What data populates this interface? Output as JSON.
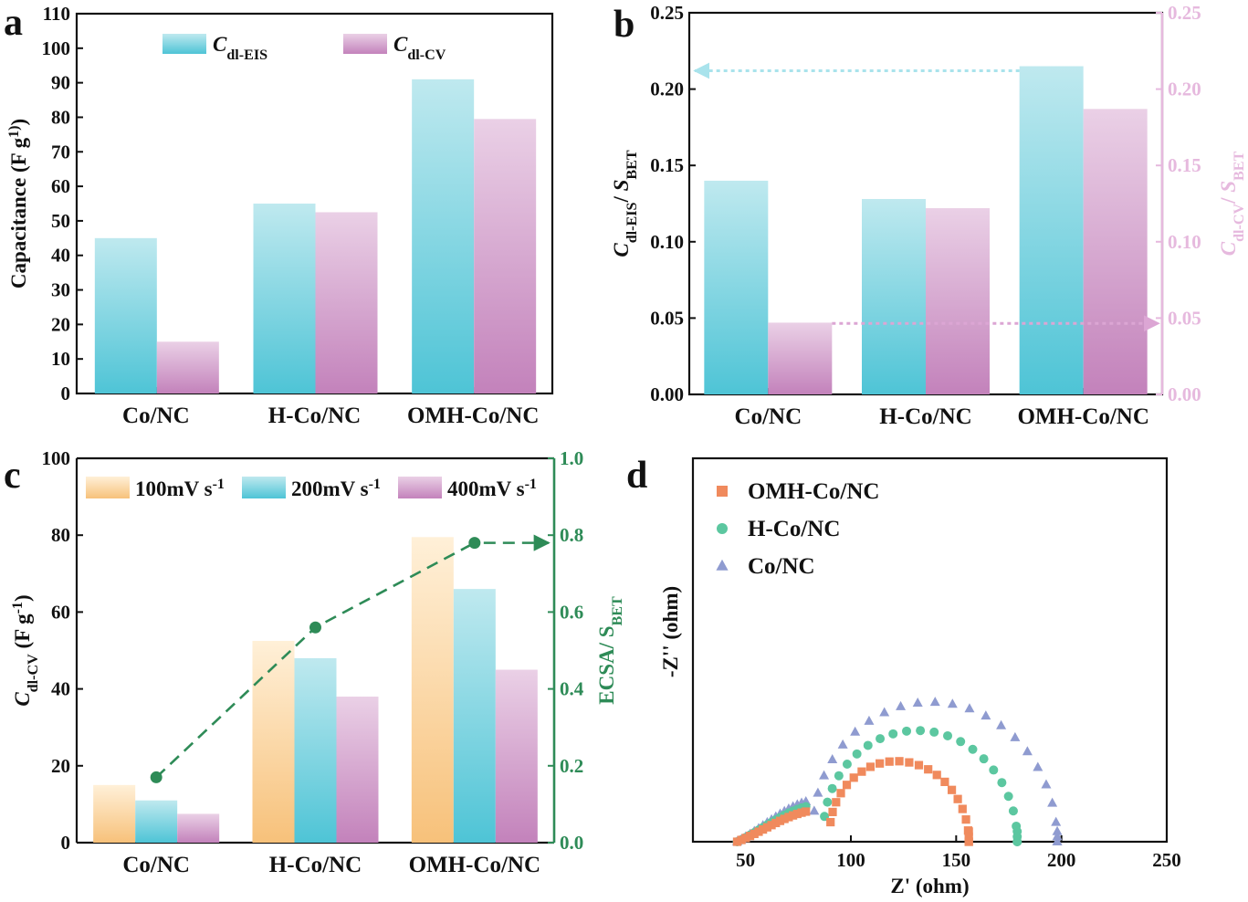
{
  "colors": {
    "cyan_top": "#bfe9ef",
    "cyan_bottom": "#4ec4d6",
    "purple_top": "#ead0e6",
    "purple_bottom": "#c382bb",
    "orange_top": "#fff0d8",
    "orange_bottom": "#f7c17a",
    "green": "#2e8b57",
    "pink_axis": "#e6b9de",
    "marker_orange": "#f08a5d",
    "marker_green": "#5cc7a0",
    "marker_blue": "#8f9bd0"
  },
  "panels": {
    "a": {
      "letter": "a"
    },
    "b": {
      "letter": "b"
    },
    "c": {
      "letter": "c"
    },
    "d": {
      "letter": "d"
    }
  },
  "chart_data": [
    {
      "panel": "a",
      "type": "bar",
      "categories": [
        "Co/NC",
        "H-Co/NC",
        "OMH-Co/NC"
      ],
      "series": [
        {
          "name": "C_dl-EIS",
          "legend_main": "C",
          "legend_sub": "dl-EIS",
          "values": [
            45,
            55,
            91
          ]
        },
        {
          "name": "C_dl-CV",
          "legend_main": "C",
          "legend_sub": "dl-CV",
          "values": [
            15,
            52.5,
            79.5
          ]
        }
      ],
      "ylabel": "Capacitance (F g-1)",
      "ylim": [
        0,
        110
      ],
      "yticks": [
        0,
        10,
        20,
        30,
        40,
        50,
        60,
        70,
        80,
        90,
        100,
        110
      ],
      "legend": "top"
    },
    {
      "panel": "b",
      "type": "bar",
      "categories": [
        "Co/NC",
        "H-Co/NC",
        "OMH-Co/NC"
      ],
      "series": [
        {
          "name": "C_dl-EIS/S_BET",
          "axis": "left",
          "values": [
            0.14,
            0.128,
            0.215
          ]
        },
        {
          "name": "C_dl-CV/S_BET",
          "axis": "right",
          "values": [
            0.047,
            0.122,
            0.187
          ]
        }
      ],
      "ylabel_left": "C_dl-EIS/ S_BET",
      "ylabel_right": "C_dl-CV/ S_BET",
      "ylim": [
        0,
        0.25
      ],
      "yticks": [
        "0.00",
        "0.05",
        "0.10",
        "0.15",
        "0.20",
        "0.25"
      ],
      "annotations": [
        "dotted arrow from OMH-Co/NC EIS bar to left axis",
        "dotted arrow from Co/NC CV bar to right axis"
      ]
    },
    {
      "panel": "c",
      "type": "bar",
      "categories": [
        "Co/NC",
        "H-Co/NC",
        "OMH-Co/NC"
      ],
      "series": [
        {
          "name": "100mV s-1",
          "legend_main": "100mV s",
          "legend_sup": "-1",
          "values": [
            15,
            52.5,
            79.5
          ]
        },
        {
          "name": "200mV s-1",
          "legend_main": "200mV s",
          "legend_sup": "-1",
          "values": [
            11,
            48,
            66
          ]
        },
        {
          "name": "400mV s-1",
          "legend_main": "400mV s",
          "legend_sup": "-1",
          "values": [
            7.5,
            38,
            45
          ]
        }
      ],
      "line_series": {
        "name": "ECSA/ S_BET",
        "axis": "right",
        "values": [
          0.17,
          0.56,
          0.78
        ]
      },
      "ylabel_left": "C_dl-CV (F g-1)",
      "ylabel_right": "ECSA/ S_BET",
      "ylim_left": [
        0,
        100
      ],
      "yticks_left": [
        "0",
        "20",
        "40",
        "60",
        "80",
        "100"
      ],
      "ylim_right": [
        0,
        1.0
      ],
      "yticks_right": [
        "0.0",
        "0.2",
        "0.4",
        "0.6",
        "0.8",
        "1.0"
      ],
      "legend": "top"
    },
    {
      "panel": "d",
      "type": "scatter",
      "xlabel": "Z' (ohm)",
      "ylabel": "-Z'' (ohm)",
      "xlim": [
        25,
        250
      ],
      "xticks": [
        "50",
        "100",
        "150",
        "200",
        "250"
      ],
      "ylim": [
        0,
        150
      ],
      "series": [
        {
          "name": "OMH-Co/NC",
          "marker": "square",
          "x0": 46,
          "bump_x": 80,
          "bump_y": 12,
          "center": 123,
          "radius": 33,
          "end_x": 156
        },
        {
          "name": "H-Co/NC",
          "marker": "circle",
          "x0": 46,
          "bump_x": 80,
          "bump_y": 14,
          "center": 133,
          "radius": 46,
          "end_x": 179
        },
        {
          "name": "Co/NC",
          "marker": "triangle",
          "x0": 46,
          "bump_x": 80,
          "bump_y": 16,
          "center": 140,
          "radius": 58,
          "end_x": 198
        }
      ],
      "legend": "top-left"
    }
  ]
}
